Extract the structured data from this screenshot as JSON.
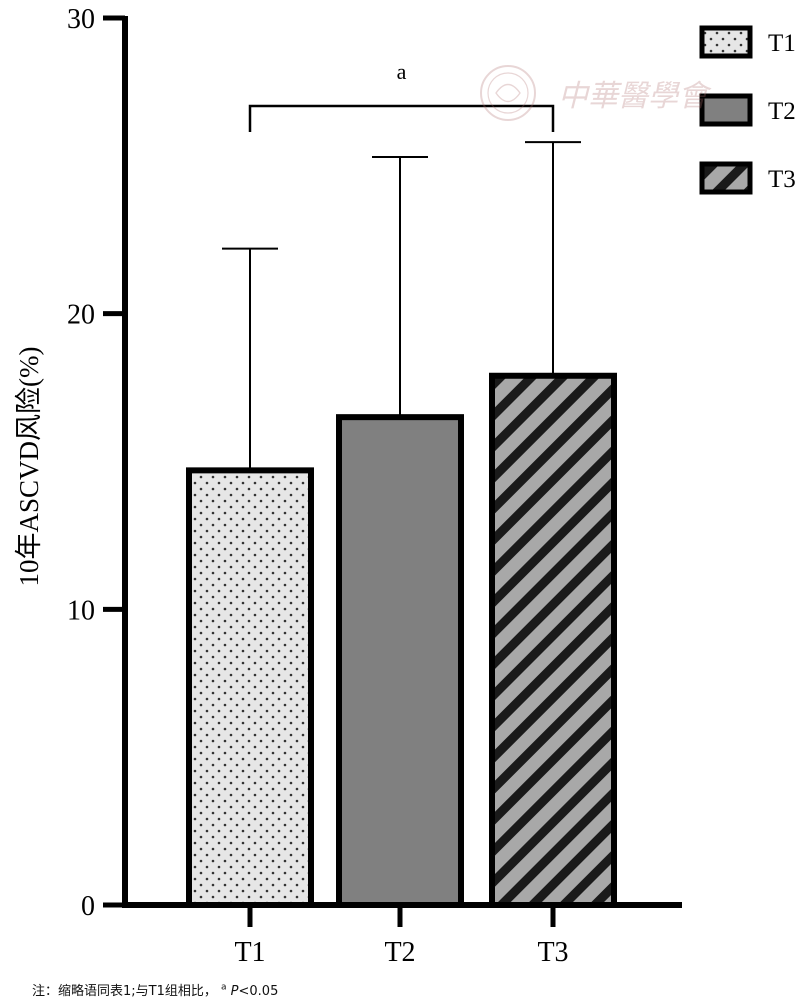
{
  "chart_data": {
    "type": "bar",
    "categories": [
      "T1",
      "T2",
      "T3"
    ],
    "values": [
      14.7,
      16.5,
      17.9
    ],
    "error_upper": [
      22.2,
      25.3,
      25.8
    ],
    "ylabel": "10年ASCVD风险(%)",
    "xlabel": "",
    "ylim": [
      0,
      30
    ],
    "yticks": [
      0,
      10,
      20,
      30
    ],
    "legend": {
      "position": "top-right",
      "entries": [
        "T1",
        "T2",
        "T3"
      ]
    },
    "patterns": [
      "dots",
      "solid-gray",
      "diagonal-stripes"
    ],
    "colors": {
      "t1_fill": "#e6e6e6",
      "t2_fill": "#808080",
      "t3_fill": "#a8a8a8",
      "stroke": "#000000"
    },
    "significance": {
      "from": "T1",
      "to": "T3",
      "label": "a"
    },
    "grid": false
  },
  "footnote": {
    "prefix": "注：缩略语同表1;与T1组相比，",
    "marker": "a",
    "p_symbol": "P",
    "p_text": "<0.05"
  },
  "watermark": {
    "text": "中華醫學會"
  }
}
